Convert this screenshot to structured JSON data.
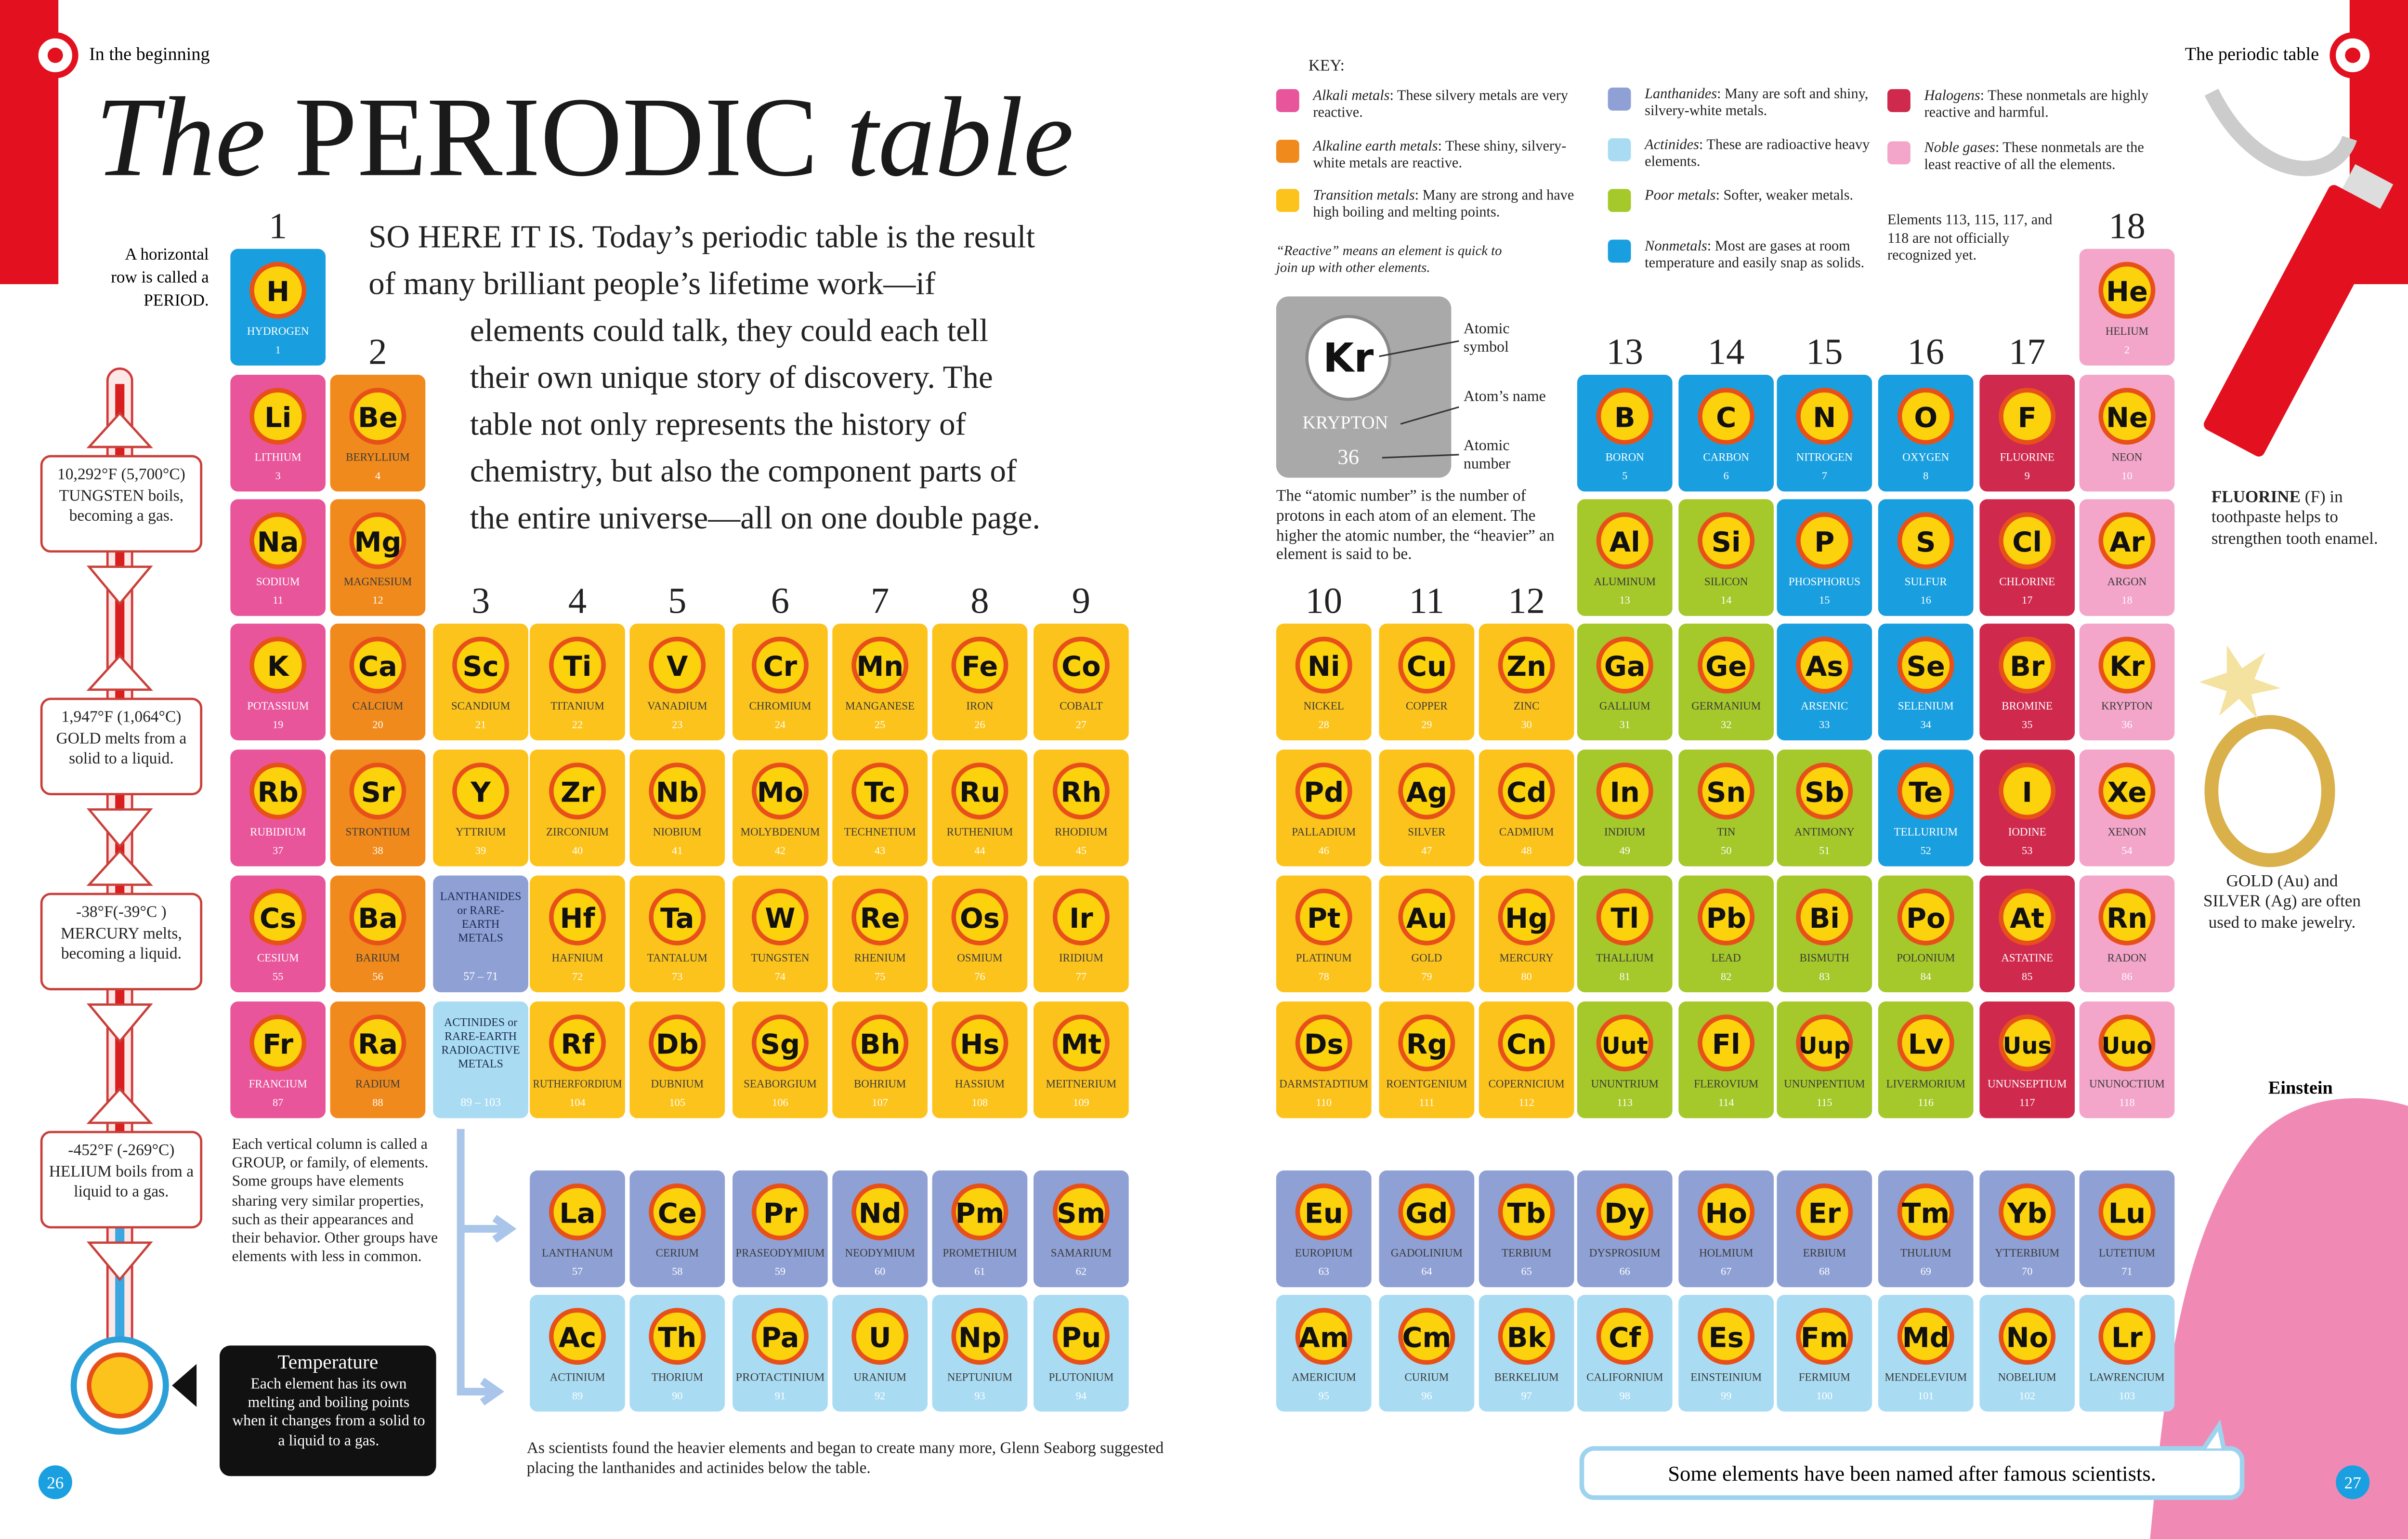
{
  "header": {
    "left": "In the beginning",
    "right": "The periodic table"
  },
  "title": {
    "the": "The",
    "periodic": "PERIODIC",
    "table": "table"
  },
  "intro": [
    "SO HERE IT IS. Today’s periodic table is the result",
    "of many brilliant people’s lifetime work—if",
    "elements could talk, they could each tell",
    "their own unique story of discovery. The",
    "table not only represents the history of",
    "chemistry, but also the component parts of",
    "the entire universe—all on one double page."
  ],
  "period_note": [
    "A horizontal",
    "row is called a",
    "PERIOD."
  ],
  "group_labels": [
    1,
    2,
    3,
    4,
    5,
    6,
    7,
    8,
    9,
    10,
    11,
    12,
    13,
    14,
    15,
    16,
    17,
    18
  ],
  "elements": [
    {
      "symbol": "H",
      "name": "HYDROGEN",
      "number": 1,
      "color": "#199fdf"
    },
    {
      "symbol": "He",
      "name": "HELIUM",
      "number": 2,
      "color": "#f3a6c9"
    },
    {
      "symbol": "Li",
      "name": "LITHIUM",
      "number": 3,
      "color": "#e9559b"
    },
    {
      "symbol": "Be",
      "name": "BERYLLIUM",
      "number": 4,
      "color": "#f08a1c"
    },
    {
      "symbol": "B",
      "name": "BORON",
      "number": 5,
      "color": "#199fdf"
    },
    {
      "symbol": "C",
      "name": "CARBON",
      "number": 6,
      "color": "#199fdf"
    },
    {
      "symbol": "N",
      "name": "NITROGEN",
      "number": 7,
      "color": "#199fdf"
    },
    {
      "symbol": "O",
      "name": "OXYGEN",
      "number": 8,
      "color": "#199fdf"
    },
    {
      "symbol": "F",
      "name": "FLUORINE",
      "number": 9,
      "color": "#cf2a4e"
    },
    {
      "symbol": "Ne",
      "name": "NEON",
      "number": 10,
      "color": "#f3a6c9"
    },
    {
      "symbol": "Na",
      "name": "SODIUM",
      "number": 11,
      "color": "#e9559b"
    },
    {
      "symbol": "Mg",
      "name": "MAGNESIUM",
      "number": 12,
      "color": "#f08a1c"
    },
    {
      "symbol": "Al",
      "name": "ALUMINUM",
      "number": 13,
      "color": "#a5c82a"
    },
    {
      "symbol": "Si",
      "name": "SILICON",
      "number": 14,
      "color": "#a5c82a"
    },
    {
      "symbol": "P",
      "name": "PHOSPHORUS",
      "number": 15,
      "color": "#199fdf"
    },
    {
      "symbol": "S",
      "name": "SULFUR",
      "number": 16,
      "color": "#199fdf"
    },
    {
      "symbol": "Cl",
      "name": "CHLORINE",
      "number": 17,
      "color": "#cf2a4e"
    },
    {
      "symbol": "Ar",
      "name": "ARGON",
      "number": 18,
      "color": "#f3a6c9"
    },
    {
      "symbol": "K",
      "name": "POTASSIUM",
      "number": 19,
      "color": "#e9559b"
    },
    {
      "symbol": "Ca",
      "name": "CALCIUM",
      "number": 20,
      "color": "#f08a1c"
    },
    {
      "symbol": "Sc",
      "name": "SCANDIUM",
      "number": 21,
      "color": "#fcc31c"
    },
    {
      "symbol": "Ti",
      "name": "TITANIUM",
      "number": 22,
      "color": "#fcc31c"
    },
    {
      "symbol": "V",
      "name": "VANADIUM",
      "number": 23,
      "color": "#fcc31c"
    },
    {
      "symbol": "Cr",
      "name": "CHROMIUM",
      "number": 24,
      "color": "#fcc31c"
    },
    {
      "symbol": "Mn",
      "name": "MANGANESE",
      "number": 25,
      "color": "#fcc31c"
    },
    {
      "symbol": "Fe",
      "name": "IRON",
      "number": 26,
      "color": "#fcc31c"
    },
    {
      "symbol": "Co",
      "name": "COBALT",
      "number": 27,
      "color": "#fcc31c"
    },
    {
      "symbol": "Ni",
      "name": "NICKEL",
      "number": 28,
      "color": "#fcc31c"
    },
    {
      "symbol": "Cu",
      "name": "COPPER",
      "number": 29,
      "color": "#fcc31c"
    },
    {
      "symbol": "Zn",
      "name": "ZINC",
      "number": 30,
      "color": "#fcc31c"
    },
    {
      "symbol": "Ga",
      "name": "GALLIUM",
      "number": 31,
      "color": "#a5c82a"
    },
    {
      "symbol": "Ge",
      "name": "GERMANIUM",
      "number": 32,
      "color": "#a5c82a"
    },
    {
      "symbol": "As",
      "name": "ARSENIC",
      "number": 33,
      "color": "#199fdf"
    },
    {
      "symbol": "Se",
      "name": "SELENIUM",
      "number": 34,
      "color": "#199fdf"
    },
    {
      "symbol": "Br",
      "name": "BROMINE",
      "number": 35,
      "color": "#cf2a4e"
    },
    {
      "symbol": "Kr",
      "name": "KRYPTON",
      "number": 36,
      "color": "#f3a6c9"
    },
    {
      "symbol": "Rb",
      "name": "RUBIDIUM",
      "number": 37,
      "color": "#e9559b"
    },
    {
      "symbol": "Sr",
      "name": "STRONTIUM",
      "number": 38,
      "color": "#f08a1c"
    },
    {
      "symbol": "Y",
      "name": "YTTRIUM",
      "number": 39,
      "color": "#fcc31c"
    },
    {
      "symbol": "Zr",
      "name": "ZIRCONIUM",
      "number": 40,
      "color": "#fcc31c"
    },
    {
      "symbol": "Nb",
      "name": "NIOBIUM",
      "number": 41,
      "color": "#fcc31c"
    },
    {
      "symbol": "Mo",
      "name": "MOLYBDENUM",
      "number": 42,
      "color": "#fcc31c"
    },
    {
      "symbol": "Tc",
      "name": "TECHNETIUM",
      "number": 43,
      "color": "#fcc31c"
    },
    {
      "symbol": "Ru",
      "name": "RUTHENIUM",
      "number": 44,
      "color": "#fcc31c"
    },
    {
      "symbol": "Rh",
      "name": "RHODIUM",
      "number": 45,
      "color": "#fcc31c"
    },
    {
      "symbol": "Pd",
      "name": "PALLADIUM",
      "number": 46,
      "color": "#fcc31c"
    },
    {
      "symbol": "Ag",
      "name": "SILVER",
      "number": 47,
      "color": "#fcc31c"
    },
    {
      "symbol": "Cd",
      "name": "CADMIUM",
      "number": 48,
      "color": "#fcc31c"
    },
    {
      "symbol": "In",
      "name": "INDIUM",
      "number": 49,
      "color": "#a5c82a"
    },
    {
      "symbol": "Sn",
      "name": "TIN",
      "number": 50,
      "color": "#a5c82a"
    },
    {
      "symbol": "Sb",
      "name": "ANTIMONY",
      "number": 51,
      "color": "#a5c82a"
    },
    {
      "symbol": "Te",
      "name": "TELLURIUM",
      "number": 52,
      "color": "#199fdf"
    },
    {
      "symbol": "I",
      "name": "IODINE",
      "number": 53,
      "color": "#cf2a4e"
    },
    {
      "symbol": "Xe",
      "name": "XENON",
      "number": 54,
      "color": "#f3a6c9"
    },
    {
      "symbol": "Cs",
      "name": "CESIUM",
      "number": 55,
      "color": "#e9559b"
    },
    {
      "symbol": "Ba",
      "name": "BARIUM",
      "number": 56,
      "color": "#f08a1c"
    },
    {
      "symbol": "La",
      "name": "LANTHANUM",
      "number": 57,
      "color": "#8fa0d4"
    },
    {
      "symbol": "Ce",
      "name": "CERIUM",
      "number": 58,
      "color": "#8fa0d4"
    },
    {
      "symbol": "Pr",
      "name": "PRASEODYMIUM",
      "number": 59,
      "color": "#8fa0d4"
    },
    {
      "symbol": "Nd",
      "name": "NEODYMIUM",
      "number": 60,
      "color": "#8fa0d4"
    },
    {
      "symbol": "Pm",
      "name": "PROMETHIUM",
      "number": 61,
      "color": "#8fa0d4"
    },
    {
      "symbol": "Sm",
      "name": "SAMARIUM",
      "number": 62,
      "color": "#8fa0d4"
    },
    {
      "symbol": "Eu",
      "name": "EUROPIUM",
      "number": 63,
      "color": "#8fa0d4"
    },
    {
      "symbol": "Gd",
      "name": "GADOLINIUM",
      "number": 64,
      "color": "#8fa0d4"
    },
    {
      "symbol": "Tb",
      "name": "TERBIUM",
      "number": 65,
      "color": "#8fa0d4"
    },
    {
      "symbol": "Dy",
      "name": "DYSPROSIUM",
      "number": 66,
      "color": "#8fa0d4"
    },
    {
      "symbol": "Ho",
      "name": "HOLMIUM",
      "number": 67,
      "color": "#8fa0d4"
    },
    {
      "symbol": "Er",
      "name": "ERBIUM",
      "number": 68,
      "color": "#8fa0d4"
    },
    {
      "symbol": "Tm",
      "name": "THULIUM",
      "number": 69,
      "color": "#8fa0d4"
    },
    {
      "symbol": "Yb",
      "name": "YTTERBIUM",
      "number": 70,
      "color": "#8fa0d4"
    },
    {
      "symbol": "Lu",
      "name": "LUTETIUM",
      "number": 71,
      "color": "#8fa0d4"
    },
    {
      "symbol": "Hf",
      "name": "HAFNIUM",
      "number": 72,
      "color": "#fcc31c"
    },
    {
      "symbol": "Ta",
      "name": "TANTALUM",
      "number": 73,
      "color": "#fcc31c"
    },
    {
      "symbol": "W",
      "name": "TUNGSTEN",
      "number": 74,
      "color": "#fcc31c"
    },
    {
      "symbol": "Re",
      "name": "RHENIUM",
      "number": 75,
      "color": "#fcc31c"
    },
    {
      "symbol": "Os",
      "name": "OSMIUM",
      "number": 76,
      "color": "#fcc31c"
    },
    {
      "symbol": "Ir",
      "name": "IRIDIUM",
      "number": 77,
      "color": "#fcc31c"
    },
    {
      "symbol": "Pt",
      "name": "PLATINUM",
      "number": 78,
      "color": "#fcc31c"
    },
    {
      "symbol": "Au",
      "name": "GOLD",
      "number": 79,
      "color": "#fcc31c"
    },
    {
      "symbol": "Hg",
      "name": "MERCURY",
      "number": 80,
      "color": "#fcc31c"
    },
    {
      "symbol": "Tl",
      "name": "THALLIUM",
      "number": 81,
      "color": "#a5c82a"
    },
    {
      "symbol": "Pb",
      "name": "LEAD",
      "number": 82,
      "color": "#a5c82a"
    },
    {
      "symbol": "Bi",
      "name": "BISMUTH",
      "number": 83,
      "color": "#a5c82a"
    },
    {
      "symbol": "Po",
      "name": "POLONIUM",
      "number": 84,
      "color": "#a5c82a"
    },
    {
      "symbol": "At",
      "name": "ASTATINE",
      "number": 85,
      "color": "#cf2a4e"
    },
    {
      "symbol": "Rn",
      "name": "RADON",
      "number": 86,
      "color": "#f3a6c9"
    },
    {
      "symbol": "Fr",
      "name": "FRANCIUM",
      "number": 87,
      "color": "#e9559b"
    },
    {
      "symbol": "Ra",
      "name": "RADIUM",
      "number": 88,
      "color": "#f08a1c"
    },
    {
      "symbol": "Ac",
      "name": "ACTINIUM",
      "number": 89,
      "color": "#a9dcf3"
    },
    {
      "symbol": "Th",
      "name": "THORIUM",
      "number": 90,
      "color": "#a9dcf3"
    },
    {
      "symbol": "Pa",
      "name": "PROTACTINIUM",
      "number": 91,
      "color": "#a9dcf3"
    },
    {
      "symbol": "U",
      "name": "URANIUM",
      "number": 92,
      "color": "#a9dcf3"
    },
    {
      "symbol": "Np",
      "name": "NEPTUNIUM",
      "number": 93,
      "color": "#a9dcf3"
    },
    {
      "symbol": "Pu",
      "name": "PLUTONIUM",
      "number": 94,
      "color": "#a9dcf3"
    },
    {
      "symbol": "Am",
      "name": "AMERICIUM",
      "number": 95,
      "color": "#a9dcf3"
    },
    {
      "symbol": "Cm",
      "name": "CURIUM",
      "number": 96,
      "color": "#a9dcf3"
    },
    {
      "symbol": "Bk",
      "name": "BERKELIUM",
      "number": 97,
      "color": "#a9dcf3"
    },
    {
      "symbol": "Cf",
      "name": "CALIFORNIUM",
      "number": 98,
      "color": "#a9dcf3"
    },
    {
      "symbol": "Es",
      "name": "EINSTEINIUM",
      "number": 99,
      "color": "#a9dcf3"
    },
    {
      "symbol": "Fm",
      "name": "FERMIUM",
      "number": 100,
      "color": "#a9dcf3"
    },
    {
      "symbol": "Md",
      "name": "MENDELEVIUM",
      "number": 101,
      "color": "#a9dcf3"
    },
    {
      "symbol": "No",
      "name": "NOBELIUM",
      "number": 102,
      "color": "#a9dcf3"
    },
    {
      "symbol": "Lr",
      "name": "LAWRENCIUM",
      "number": 103,
      "color": "#a9dcf3"
    },
    {
      "symbol": "Rf",
      "name": "RUTHERFORDIUM",
      "number": 104,
      "color": "#fcc31c"
    },
    {
      "symbol": "Db",
      "name": "DUBNIUM",
      "number": 105,
      "color": "#fcc31c"
    },
    {
      "symbol": "Sg",
      "name": "SEABORGIUM",
      "number": 106,
      "color": "#fcc31c"
    },
    {
      "symbol": "Bh",
      "name": "BOHRIUM",
      "number": 107,
      "color": "#fcc31c"
    },
    {
      "symbol": "Hs",
      "name": "HASSIUM",
      "number": 108,
      "color": "#fcc31c"
    },
    {
      "symbol": "Mt",
      "name": "MEITNERIUM",
      "number": 109,
      "color": "#fcc31c"
    },
    {
      "symbol": "Ds",
      "name": "DARMSTADTIUM",
      "number": 110,
      "color": "#fcc31c"
    },
    {
      "symbol": "Rg",
      "name": "ROENTGENIUM",
      "number": 111,
      "color": "#fcc31c"
    },
    {
      "symbol": "Cn",
      "name": "COPERNICIUM",
      "number": 112,
      "color": "#fcc31c"
    },
    {
      "symbol": "Uut",
      "name": "UNUNTRIUM",
      "number": 113,
      "color": "#a5c82a"
    },
    {
      "symbol": "Fl",
      "name": "FLEROVIUM",
      "number": 114,
      "color": "#a5c82a"
    },
    {
      "symbol": "Uup",
      "name": "UNUNPENTIUM",
      "number": 115,
      "color": "#a5c82a"
    },
    {
      "symbol": "Lv",
      "name": "LIVERMORIUM",
      "number": 116,
      "color": "#a5c82a"
    },
    {
      "symbol": "Uus",
      "name": "UNUNSEPTIUM",
      "number": 117,
      "color": "#cf2a4e"
    },
    {
      "symbol": "Uuo",
      "name": "UNUNOCTIUM",
      "number": 118,
      "color": "#f3a6c9"
    }
  ],
  "lanthanide_box": {
    "lines": [
      "LANTHANIDES",
      "or RARE-",
      "EARTH",
      "METALS"
    ],
    "range": "57 – 71",
    "color": "#8fa0d4"
  },
  "actinide_box": {
    "lines": [
      "ACTINIDES or",
      "RARE-EARTH",
      "RADIOACTIVE",
      "METALS"
    ],
    "range": "89 – 103",
    "color": "#a9dcf3"
  },
  "thermometer": [
    {
      "temp": "10,292°F (5,700°C)",
      "text": "TUNGSTEN boils, becoming a gas."
    },
    {
      "temp": "1,947°F (1,064°C)",
      "text": "GOLD melts from a solid to a liquid."
    },
    {
      "temp": "-38°F(-39°C )",
      "text": "MERCURY melts, becoming a liquid."
    },
    {
      "temp": "-452°F (-269°C)",
      "text": "HELIUM boils from a liquid to a gas."
    }
  ],
  "temperature_box": {
    "title": "Temperature",
    "text": "Each element has its own melting and boiling points when it changes from a solid to a liquid to a gas."
  },
  "group_note": "Each vertical column is called a GROUP, or family, of elements. Some groups have elements sharing very similar properties, such as their appearances and their behavior. Other groups have elements with less in common.",
  "seaborg_note": "As scientists found the heavier elements and began to create many more, Glenn Seaborg suggested placing the lanthanides and actinides below the table.",
  "page_numbers": [
    26,
    27
  ],
  "key": {
    "title": "KEY:",
    "items": [
      {
        "term": "Alkali metals",
        "text": ": These silvery metals are very reactive.",
        "color": "#e9559b"
      },
      {
        "term": "Alkaline earth metals",
        "text": ": These shiny, silvery-white metals are reactive.",
        "color": "#f08a1c"
      },
      {
        "term": "Transition metals",
        "text": ": Many are strong and have high boiling and melting points.",
        "color": "#fcc31c"
      },
      {
        "term": "Lanthanides",
        "text": ": Many are soft and shiny, silvery-white metals.",
        "color": "#8fa0d4"
      },
      {
        "term": "Actinides",
        "text": ": These are radioactive heavy elements.",
        "color": "#a9dcf3"
      },
      {
        "term": "Poor metals",
        "text": ": Softer, weaker metals.",
        "color": "#a5c82a"
      },
      {
        "term": "Nonmetals",
        "text": ": Most are gases at room temperature and easily snap as solids.",
        "color": "#199fdf"
      },
      {
        "term": "Halogens",
        "text": ": These nonmetals are highly reactive and harmful.",
        "color": "#cf2a4e"
      },
      {
        "term": "Noble gases",
        "text": ": These nonmetals are the least reactive of all the elements.",
        "color": "#f3a6c9"
      }
    ],
    "reactive_note": "“Reactive” means an element is quick to join up with other elements.",
    "unofficial_note": "Elements 113, 115, 117, and 118 are not officially recognized yet."
  },
  "example": {
    "symbol": "Kr",
    "name": "KRYPTON",
    "number": 36,
    "labels": [
      "Atomic symbol",
      "Atom’s name",
      "Atomic number"
    ],
    "note": "The “atomic number” is the number of protons in each atom of an element. The higher the atomic number, the “heavier” an element is said to be."
  },
  "fluorine_note": {
    "bold": "FLUORINE",
    "text": "(F) in toothpaste helps to strengthen tooth enamel."
  },
  "jewelry_note": "GOLD (Au) and SILVER (Ag) are often used to make jewelry.",
  "einstein": "Einstein",
  "scientists_note": "Some elements have been named after famous scientists."
}
